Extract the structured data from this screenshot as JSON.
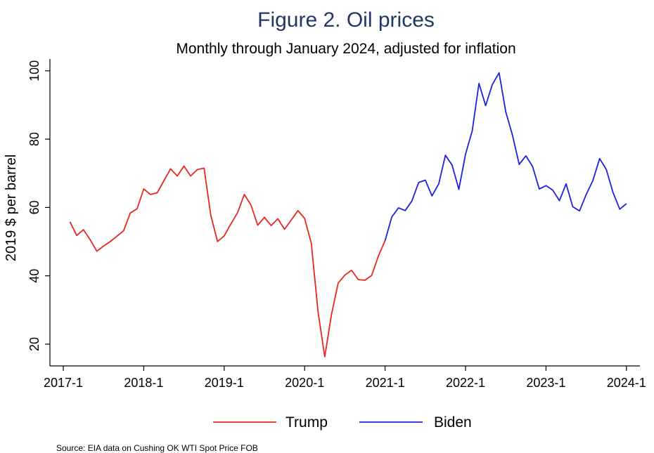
{
  "chart_data": {
    "type": "line",
    "title": "Figure 2.  Oil prices",
    "subtitle": "Monthly through January 2024, adjusted for inflation",
    "ylabel": "2019 $ per barrel",
    "xlabel": "",
    "ylim": [
      15,
      102
    ],
    "yticks": [
      20,
      40,
      60,
      80,
      100
    ],
    "xticks": [
      "2017-1",
      "2018-1",
      "2019-1",
      "2020-1",
      "2021-1",
      "2022-1",
      "2023-1",
      "2024-1"
    ],
    "x_start": "2017-2",
    "grid": false,
    "legend_position": "bottom",
    "source": "Source: EIA data on Cushing OK WTI Spot Price FOB",
    "series": [
      {
        "name": "Trump",
        "color": "#e8261f",
        "start": "2017-2",
        "values": [
          55.8,
          51.8,
          53.5,
          50.6,
          47.2,
          48.7,
          50.0,
          51.6,
          53.2,
          58.4,
          59.6,
          65.4,
          63.8,
          64.3,
          67.8,
          71.3,
          69.2,
          72.1,
          69.2,
          71.1,
          71.5,
          57.8,
          50.0,
          51.7,
          55.2,
          58.5,
          63.8,
          60.7,
          54.8,
          57.1,
          54.7,
          56.7,
          53.6,
          56.3,
          59.1,
          56.8,
          49.5,
          29.4,
          16.3,
          28.6,
          37.9,
          40.2,
          41.6,
          38.9,
          38.7,
          40.1,
          45.8,
          50.3
        ]
      },
      {
        "name": "Biden",
        "color": "#1a21e0",
        "start": "2021-1",
        "values": [
          50.3,
          57.2,
          59.9,
          59.1,
          61.9,
          67.3,
          68.0,
          63.4,
          66.9,
          75.3,
          72.4,
          65.3,
          75.6,
          82.4,
          96.3,
          89.8,
          96.0,
          99.4,
          88.0,
          81.2,
          72.6,
          75.1,
          72.0,
          65.4,
          66.4,
          65.1,
          62.0,
          66.9,
          60.2,
          59.0,
          63.8,
          67.9,
          74.3,
          71.1,
          64.4,
          59.5,
          61.1
        ]
      }
    ]
  }
}
